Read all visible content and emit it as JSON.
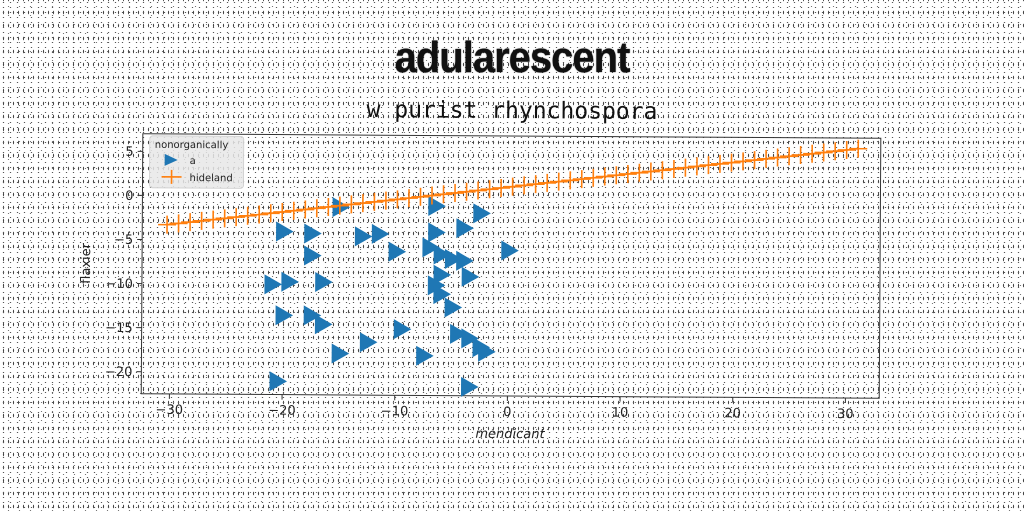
{
  "title": "adularescent",
  "subtitle": "w purist rhynchospora",
  "chart_data": {
    "type": "scatter",
    "xlabel": "mendicant",
    "ylabel": "flaxier",
    "xlim": [
      -32.5,
      33
    ],
    "ylim": [
      -22.5,
      7
    ],
    "xticks": [
      -30,
      -20,
      -10,
      0,
      10,
      20,
      30
    ],
    "yticks": [
      5,
      0,
      -5,
      -10,
      -15,
      -20
    ],
    "xtick_labels": [
      "−30",
      "−20",
      "−10",
      "0",
      "10",
      "20",
      "30"
    ],
    "ytick_labels": [
      "5",
      "0",
      "−5",
      "−10",
      "−15",
      "−20"
    ],
    "grid": false,
    "legend": {
      "title": "nonorganically",
      "placement": "top-left"
    },
    "series": [
      {
        "name": "a",
        "marker": "triangle-right",
        "color": "#1f77b4",
        "points": [
          [
            -15,
            -1.2
          ],
          [
            -6.5,
            -1
          ],
          [
            -2.5,
            -1.8
          ],
          [
            -20,
            -4
          ],
          [
            -17.5,
            -4.2
          ],
          [
            -13,
            -4.5
          ],
          [
            -11.5,
            -4.2
          ],
          [
            -6.5,
            -4
          ],
          [
            -4,
            -3.5
          ],
          [
            -10,
            -6.2
          ],
          [
            -7,
            -5.7
          ],
          [
            -6,
            -6.5
          ],
          [
            0,
            -6
          ],
          [
            -17.5,
            -6.7
          ],
          [
            -5,
            -7
          ],
          [
            -4,
            -7.2
          ],
          [
            -6,
            -8.8
          ],
          [
            -3.5,
            -9
          ],
          [
            -21,
            -10
          ],
          [
            -19.5,
            -9.7
          ],
          [
            -16.5,
            -9.7
          ],
          [
            -6.5,
            -10
          ],
          [
            -6,
            -11
          ],
          [
            -5,
            -12.5
          ],
          [
            -20,
            -13.5
          ],
          [
            -17.5,
            -13.5
          ],
          [
            -16.5,
            -14.5
          ],
          [
            -9.5,
            -15
          ],
          [
            -4.5,
            -15.5
          ],
          [
            -3.5,
            -16
          ],
          [
            -12.5,
            -16.5
          ],
          [
            -2.5,
            -17
          ],
          [
            -2,
            -17.5
          ],
          [
            -15,
            -17.8
          ],
          [
            -7.5,
            -18
          ],
          [
            -20.5,
            -21
          ],
          [
            -3.5,
            -21.5
          ]
        ]
      },
      {
        "name": "hideland",
        "marker": "plus",
        "color": "#ff7f0e",
        "line_from": [
          -30.3,
          -3.3
        ],
        "line_to": [
          31,
          5.8
        ],
        "points_count": 61
      }
    ]
  }
}
